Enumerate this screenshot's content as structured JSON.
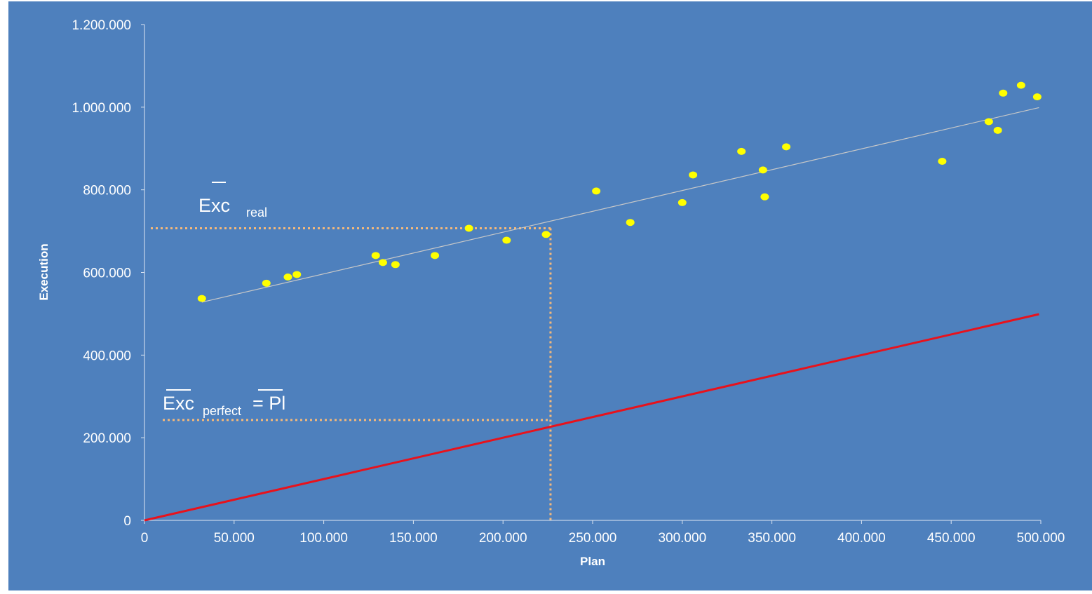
{
  "chart_data": {
    "type": "scatter",
    "title": "",
    "xlabel": "Plan",
    "ylabel": "Execution",
    "xlim": [
      0,
      500000
    ],
    "ylim": [
      0,
      1200000
    ],
    "x_ticks": [
      0,
      50000,
      100000,
      150000,
      200000,
      250000,
      300000,
      350000,
      400000,
      450000,
      500000
    ],
    "x_tick_labels": [
      "0",
      "50.000",
      "100.000",
      "150.000",
      "200.000",
      "250.000",
      "300.000",
      "350.000",
      "400.000",
      "450.000",
      "500.000"
    ],
    "y_ticks": [
      0,
      200000,
      400000,
      600000,
      800000,
      1000000,
      1200000
    ],
    "y_tick_labels": [
      "0",
      "200.000",
      "400.000",
      "600.000",
      "800.000",
      "1.000.000",
      "1.200.000"
    ],
    "grid": false,
    "colors": {
      "background": "#4e80bd",
      "points": "#ffff00",
      "trend_line": "#c8c8c8",
      "perfect_line": "#e8121c",
      "guides": "#f5b97a",
      "text": "#ffffff"
    },
    "points": [
      {
        "x": 32000,
        "y": 537000
      },
      {
        "x": 68000,
        "y": 574000
      },
      {
        "x": 80000,
        "y": 589000
      },
      {
        "x": 85000,
        "y": 595000
      },
      {
        "x": 129000,
        "y": 641000
      },
      {
        "x": 133000,
        "y": 624000
      },
      {
        "x": 140000,
        "y": 619000
      },
      {
        "x": 162000,
        "y": 641000
      },
      {
        "x": 181000,
        "y": 707000
      },
      {
        "x": 202000,
        "y": 678000
      },
      {
        "x": 224000,
        "y": 692000
      },
      {
        "x": 252000,
        "y": 797000
      },
      {
        "x": 271000,
        "y": 721000
      },
      {
        "x": 300000,
        "y": 769000
      },
      {
        "x": 306000,
        "y": 836000
      },
      {
        "x": 333000,
        "y": 893000
      },
      {
        "x": 345000,
        "y": 848000
      },
      {
        "x": 346000,
        "y": 783000
      },
      {
        "x": 358000,
        "y": 904000
      },
      {
        "x": 445000,
        "y": 869000
      },
      {
        "x": 471000,
        "y": 965000
      },
      {
        "x": 476000,
        "y": 944000
      },
      {
        "x": 479000,
        "y": 1034000
      },
      {
        "x": 489000,
        "y": 1053000
      },
      {
        "x": 498000,
        "y": 1025000
      }
    ],
    "trend_line": {
      "x1": 32000,
      "y1": 528000,
      "x2": 499000,
      "y2": 999000
    },
    "perfect_line": {
      "x1": 0,
      "y1": 0,
      "x2": 499000,
      "y2": 499000
    },
    "guides": {
      "mean_x": 226500,
      "mean_exc_real": 707000,
      "mean_exc_perfect": 243000
    },
    "annotations": {
      "exc_real": {
        "main": "Exc",
        "sub": "real"
      },
      "exc_perfect": {
        "main": "Exc",
        "sub": "perfect",
        "eq": "= Pl"
      }
    }
  }
}
